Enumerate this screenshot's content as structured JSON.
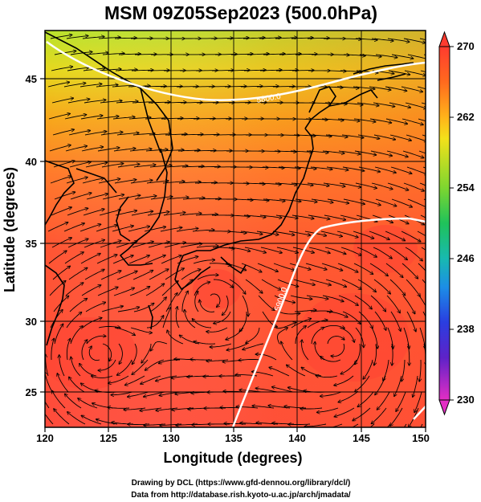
{
  "title": "MSM 09Z05Sep2023 (500.0hPa)",
  "x_axis": {
    "label": "Longitude (degrees)",
    "ticks": [
      "120",
      "125",
      "130",
      "135",
      "140",
      "145",
      "150"
    ]
  },
  "y_axis": {
    "label": "Latitude  (degrees)",
    "ticks": [
      "25",
      "30",
      "35",
      "40",
      "45"
    ]
  },
  "colorbar": {
    "ticks": [
      "270",
      "262",
      "254",
      "246",
      "238",
      "230"
    ],
    "min": 230,
    "max": 270
  },
  "contour_labels": [
    "5800.0",
    "5900.0"
  ],
  "credits": {
    "line1": "Drawing by DCL (https://www.gfd-dennou.org/library/dcl/)",
    "line2": "Data from http://database.rish.kyoto-u.ac.jp/arch/jmadata/"
  },
  "map_extent": {
    "lon": [
      120,
      150
    ],
    "lat": [
      22.5,
      47.5
    ]
  },
  "colors": {
    "warm": "#ff5533",
    "cold_north": "#c8e62e",
    "contour": "#ffffff"
  }
}
